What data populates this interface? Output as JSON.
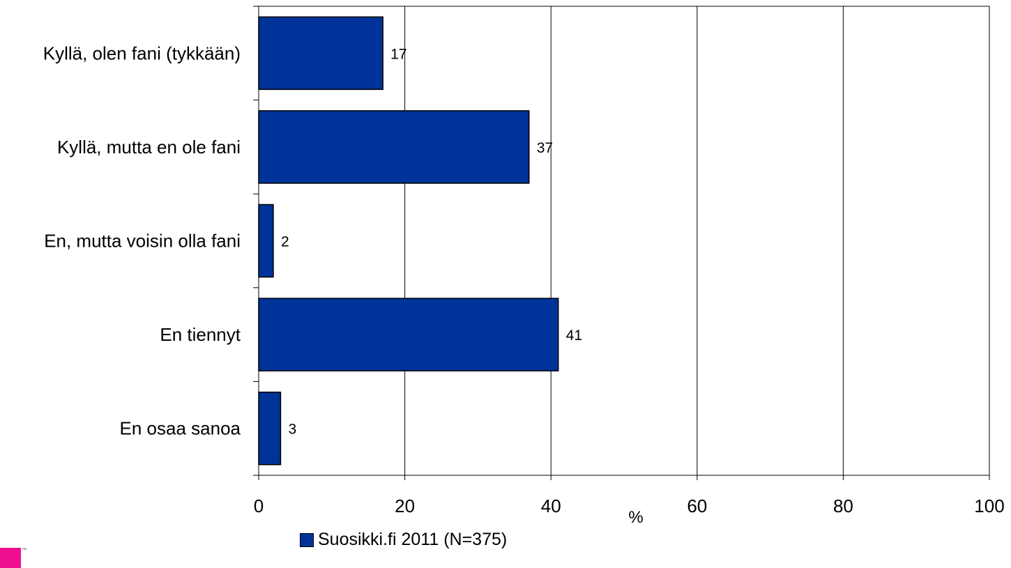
{
  "chart_data": {
    "type": "bar",
    "orientation": "horizontal",
    "categories": [
      "Kyllä, olen fani (tykkään)",
      "Kyllä, mutta en ole fani",
      "En, mutta voisin olla fani",
      "En tiennyt",
      "En osaa sanoa"
    ],
    "series": [
      {
        "name": "Suosikki.fi 2011 (N=375)",
        "values": [
          17,
          37,
          2,
          41,
          3
        ]
      }
    ],
    "data_labels": [
      "17",
      "37",
      "2",
      "41",
      "3"
    ],
    "xlabel": "%",
    "xlim": [
      0,
      100
    ],
    "xticks": [
      0,
      20,
      40,
      60,
      80,
      100
    ],
    "grid": true,
    "legend_position": "bottom",
    "bar_color": "#003399"
  },
  "legend": {
    "label": "Suosikki.fi 2011 (N=375)"
  },
  "branding": {
    "logo_color": "#ee0e8e",
    "logo_text": "™"
  }
}
